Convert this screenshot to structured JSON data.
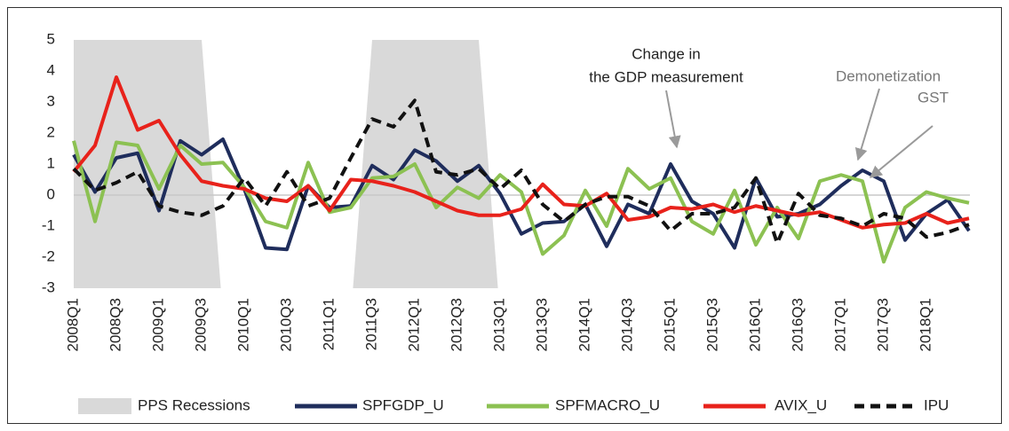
{
  "chart_data": {
    "type": "line",
    "annotations": [
      "Change in",
      "the GDP measurement",
      "Demonetization",
      "GST"
    ],
    "categories": [
      "2008Q1",
      null,
      "2008Q3",
      null,
      "2009Q1",
      null,
      "2009Q3",
      null,
      "2010Q1",
      null,
      "2010Q3",
      null,
      "2011Q1",
      null,
      "2011Q3",
      null,
      "2012Q1",
      null,
      "2012Q3",
      null,
      "2013Q1",
      null,
      "2013Q3",
      null,
      "2014Q1",
      null,
      "2014Q3",
      null,
      "2015Q1",
      null,
      "2015Q3",
      null,
      "2016Q1",
      null,
      "2016Q3",
      null,
      "2017Q1",
      null,
      "2017Q3",
      null,
      "2018Q1",
      null,
      null
    ],
    "ylim": [
      -3,
      5
    ],
    "yticks": [
      -3,
      -2,
      -1,
      0,
      1,
      2,
      3,
      4,
      5
    ],
    "recessions": {
      "name": "PPS Recessions",
      "color": "#d9d9d9",
      "values": [
        5,
        5,
        5,
        5,
        5,
        5,
        5,
        null,
        null,
        null,
        null,
        null,
        null,
        null,
        5,
        5,
        5,
        5,
        5,
        5,
        null,
        null,
        null,
        null,
        null,
        null,
        null,
        null,
        null,
        null,
        null,
        null,
        null,
        null,
        null,
        null,
        null,
        null,
        null,
        null,
        null,
        null,
        null
      ]
    },
    "series": [
      {
        "name": "SPFGDP_U",
        "color": "#1f2d5c",
        "dashed": false,
        "values": [
          1.3,
          0.1,
          1.2,
          1.35,
          -0.5,
          1.75,
          1.3,
          1.8,
          0.2,
          -1.7,
          -1.75,
          0.3,
          -0.4,
          -0.35,
          0.95,
          0.5,
          1.45,
          1.1,
          0.45,
          0.95,
          0.05,
          -1.25,
          -0.9,
          -0.85,
          -0.3,
          -1.65,
          -0.3,
          -0.6,
          1.0,
          -0.2,
          -0.6,
          -1.7,
          0.55,
          -0.7,
          -0.6,
          -0.3,
          0.3,
          0.8,
          0.45,
          -1.45,
          -0.6,
          -0.15,
          -1.15
        ]
      },
      {
        "name": "SPFMACRO_U",
        "color": "#8cc152",
        "dashed": false,
        "values": [
          1.75,
          -0.85,
          1.7,
          1.6,
          0.2,
          1.6,
          1.0,
          1.05,
          0.25,
          -0.85,
          -1.05,
          1.05,
          -0.55,
          -0.4,
          0.55,
          0.6,
          1.0,
          -0.4,
          0.25,
          -0.1,
          0.65,
          0.1,
          -1.9,
          -1.3,
          0.15,
          -1.0,
          0.85,
          0.2,
          0.55,
          -0.85,
          -1.25,
          0.15,
          -1.6,
          -0.4,
          -1.4,
          0.45,
          0.65,
          0.45,
          -2.15,
          -0.4,
          0.1,
          -0.1,
          -0.25
        ]
      },
      {
        "name": "AVIX_U",
        "color": "#e8221b",
        "dashed": false,
        "values": [
          0.75,
          1.6,
          3.8,
          2.1,
          2.4,
          1.3,
          0.45,
          0.3,
          0.2,
          -0.1,
          -0.2,
          0.3,
          -0.5,
          0.5,
          0.45,
          0.3,
          0.1,
          -0.2,
          -0.5,
          -0.65,
          -0.65,
          -0.45,
          0.35,
          -0.3,
          -0.35,
          0.05,
          -0.8,
          -0.7,
          -0.4,
          -0.45,
          -0.3,
          -0.55,
          -0.35,
          -0.5,
          -0.65,
          -0.55,
          -0.8,
          -1.05,
          -0.95,
          -0.9,
          -0.6,
          -0.9,
          -0.75
        ]
      },
      {
        "name": "IPU",
        "color": "#111111",
        "dashed": true,
        "values": [
          0.85,
          0.15,
          0.4,
          0.75,
          -0.35,
          -0.55,
          -0.65,
          -0.35,
          0.55,
          -0.35,
          0.75,
          -0.35,
          -0.1,
          1.2,
          2.45,
          2.2,
          3.05,
          0.75,
          0.65,
          0.85,
          0.2,
          0.8,
          -0.3,
          -0.85,
          -0.3,
          -0.05,
          -0.05,
          -0.35,
          -1.15,
          -0.6,
          -0.6,
          -0.4,
          0.55,
          -1.55,
          0.05,
          -0.65,
          -0.75,
          -1.0,
          -0.6,
          -0.75,
          -1.35,
          -1.2,
          -0.95
        ]
      }
    ]
  }
}
